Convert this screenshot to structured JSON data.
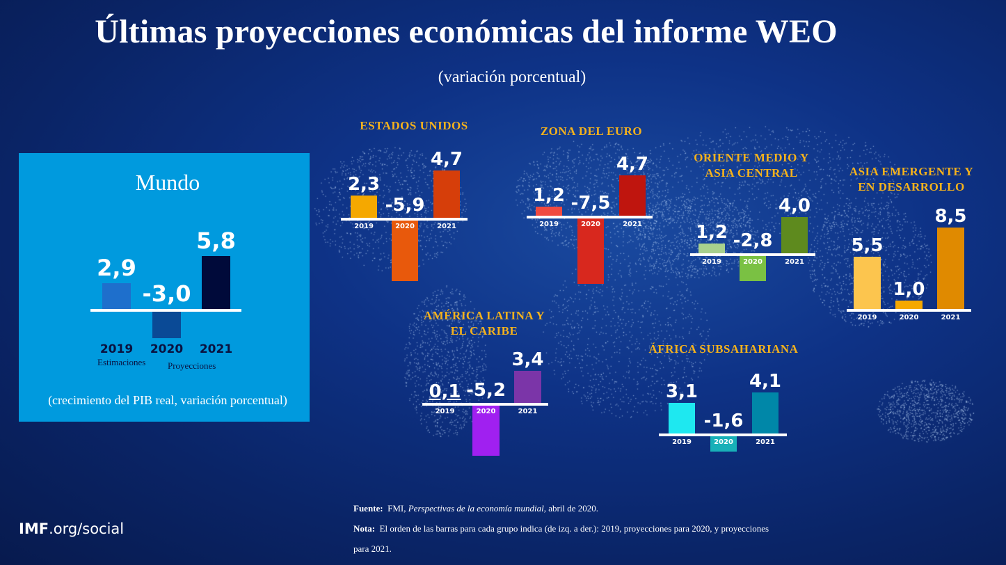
{
  "header": {
    "title": "Últimas proyecciones económicas del informe WEO",
    "subtitle": "(variación porcentual)"
  },
  "chart_data": [
    {
      "type": "bar",
      "title": "Mundo",
      "categories": [
        "2019",
        "2020",
        "2021"
      ],
      "category_notes": [
        "Estimaciones",
        "Proyecciones"
      ],
      "values": [
        2.9,
        -3.0,
        5.8
      ],
      "labels": [
        "2,9",
        "-3,0",
        "5,8"
      ],
      "colors": [
        "#1e6fcc",
        "#0a4a96",
        "#000a3a"
      ],
      "note": "(crecimiento del PIB real, variación porcentual)"
    },
    {
      "type": "bar",
      "title": "ESTADOS UNIDOS",
      "categories": [
        "2019",
        "2020",
        "2021"
      ],
      "values": [
        2.3,
        -5.9,
        4.7
      ],
      "labels": [
        "2,3",
        "-5,9",
        "4,7"
      ],
      "colors": [
        "#f5a800",
        "#e8590c",
        "#d63e0a"
      ]
    },
    {
      "type": "bar",
      "title": "ZONA DEL EURO",
      "categories": [
        "2019",
        "2020",
        "2021"
      ],
      "values": [
        1.2,
        -7.5,
        4.7
      ],
      "labels": [
        "1,2",
        "-7,5",
        "4,7"
      ],
      "colors": [
        "#f04a40",
        "#d8281e",
        "#bf150e"
      ]
    },
    {
      "type": "bar",
      "title": "ORIENTE MEDIO Y ASIA CENTRAL",
      "categories": [
        "2019",
        "2020",
        "2021"
      ],
      "values": [
        1.2,
        -2.8,
        4.0
      ],
      "labels": [
        "1,2",
        "-2,8",
        "4,0"
      ],
      "colors": [
        "#a8d08d",
        "#7ac143",
        "#5e8a1e"
      ]
    },
    {
      "type": "bar",
      "title": "ASIA EMERGENTE Y EN DESARROLLO",
      "categories": [
        "2019",
        "2020",
        "2021"
      ],
      "values": [
        5.5,
        1.0,
        8.5
      ],
      "labels": [
        "5,5",
        "1,0",
        "8,5"
      ],
      "colors": [
        "#fcc54e",
        "#f5a800",
        "#e08a00"
      ]
    },
    {
      "type": "bar",
      "title": "AMÉRICA LATINA Y EL CARIBE",
      "categories": [
        "2019",
        "2020",
        "2021"
      ],
      "values": [
        0.1,
        -5.2,
        3.4
      ],
      "labels": [
        "0,1",
        "-5,2",
        "3,4"
      ],
      "colors": [
        "#ffffff",
        "#a020f0",
        "#7b35a8"
      ]
    },
    {
      "type": "bar",
      "title": "ÁFRICA SUBSAHARIANA",
      "categories": [
        "2019",
        "2020",
        "2021"
      ],
      "values": [
        3.1,
        -1.6,
        4.1
      ],
      "labels": [
        "3,1",
        "-1,6",
        "4,1"
      ],
      "colors": [
        "#1ee8f0",
        "#18b0b8",
        "#0087a8"
      ]
    }
  ],
  "footer": {
    "source_label": "Fuente:",
    "source_text": "FMI, ",
    "source_italic": "Perspectivas de la economía mundial",
    "source_end": ", abril de 2020.",
    "note_label": "Nota:",
    "note_text": "El orden de las barras para cada grupo indica (de izq. a der.): 2019, proyecciones para 2020, y proyecciones",
    "note_text2": "para 2021.",
    "brand_bold": "IMF",
    "brand_rest": ".org/social"
  }
}
